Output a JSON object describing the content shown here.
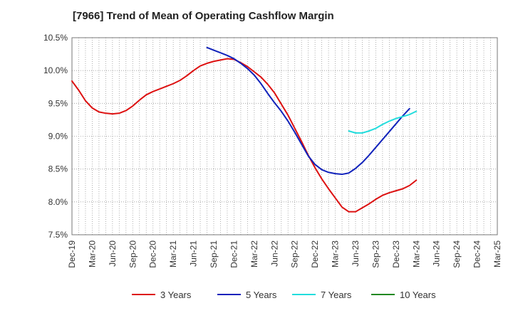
{
  "chart_data": {
    "type": "line",
    "title": "[7966]  Trend of Mean of Operating Cashflow Margin",
    "xlabel": "",
    "ylabel": "",
    "ylim": [
      7.5,
      10.5
    ],
    "y_ticks": [
      "7.5%",
      "8.0%",
      "8.5%",
      "9.0%",
      "9.5%",
      "10.0%",
      "10.5%"
    ],
    "y_tick_values": [
      7.5,
      8.0,
      8.5,
      9.0,
      9.5,
      10.0,
      10.5
    ],
    "x_tick_labels": [
      "Dec-19",
      "Mar-20",
      "Jun-20",
      "Sep-20",
      "Dec-20",
      "Mar-21",
      "Jun-21",
      "Sep-21",
      "Dec-21",
      "Mar-22",
      "Jun-22",
      "Sep-22",
      "Dec-22",
      "Mar-23",
      "Jun-23",
      "Sep-23",
      "Dec-23",
      "Mar-24",
      "Jun-24",
      "Sep-24",
      "Dec-24",
      "Mar-25"
    ],
    "grid": true,
    "legend_position": "bottom",
    "series": [
      {
        "name": "3 Years",
        "color": "#dd1111",
        "start_index": 0,
        "values": [
          9.84,
          9.7,
          9.54,
          9.43,
          9.37,
          9.35,
          9.34,
          9.35,
          9.39,
          9.46,
          9.55,
          9.63,
          9.68,
          9.72,
          9.76,
          9.8,
          9.85,
          9.92,
          10.0,
          10.07,
          10.11,
          10.14,
          10.16,
          10.18,
          10.17,
          10.12,
          10.06,
          9.98,
          9.9,
          9.79,
          9.66,
          9.49,
          9.32,
          9.12,
          8.92,
          8.71,
          8.52,
          8.35,
          8.2,
          8.06,
          7.92,
          7.85,
          7.85,
          7.91,
          7.97,
          8.04,
          8.1,
          8.14,
          8.17,
          8.2,
          8.25,
          8.33
        ]
      },
      {
        "name": "5 Years",
        "color": "#1122bb",
        "start_index": 20,
        "values": [
          10.35,
          10.31,
          10.27,
          10.23,
          10.18,
          10.11,
          10.03,
          9.93,
          9.8,
          9.65,
          9.51,
          9.38,
          9.23,
          9.06,
          8.88,
          8.7,
          8.57,
          8.49,
          8.45,
          8.43,
          8.42,
          8.44,
          8.51,
          8.6,
          8.71,
          8.83,
          8.95,
          9.07,
          9.19,
          9.31,
          9.42
        ]
      },
      {
        "name": "7 Years",
        "color": "#22dddd",
        "start_index": 41,
        "values": [
          9.08,
          9.05,
          9.05,
          9.08,
          9.12,
          9.18,
          9.23,
          9.27,
          9.3,
          9.33,
          9.38
        ]
      },
      {
        "name": "10 Years",
        "color": "#228822",
        "start_index": 0,
        "values": []
      }
    ]
  }
}
